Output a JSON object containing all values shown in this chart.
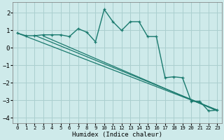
{
  "xlabel": "Humidex (Indice chaleur)",
  "background_color": "#ceeaea",
  "grid_color": "#aacfcf",
  "line_color": "#1a7a6e",
  "xlim": [
    -0.5,
    23.5
  ],
  "ylim": [
    -4.3,
    2.6
  ],
  "xticks": [
    0,
    1,
    2,
    3,
    4,
    5,
    6,
    7,
    8,
    9,
    10,
    11,
    12,
    13,
    14,
    15,
    16,
    17,
    18,
    19,
    20,
    21,
    22,
    23
  ],
  "yticks": [
    -4,
    -3,
    -2,
    -1,
    0,
    1,
    2
  ],
  "curve1_x": [
    0,
    1,
    2,
    3,
    4,
    5,
    6,
    7,
    8,
    9,
    10,
    11,
    12,
    13,
    14,
    15,
    16,
    17,
    18,
    19,
    20,
    21,
    22,
    23
  ],
  "curve1_y": [
    0.85,
    0.7,
    0.7,
    0.75,
    0.75,
    0.75,
    0.65,
    1.1,
    0.9,
    0.35,
    2.2,
    1.5,
    1.0,
    1.5,
    1.5,
    0.65,
    0.65,
    -1.7,
    -1.65,
    -1.7,
    -3.05,
    -3.05,
    -3.6,
    -3.55
  ],
  "line1_x": [
    0,
    23
  ],
  "line1_y": [
    0.85,
    -3.55
  ],
  "line2_x": [
    2,
    23
  ],
  "line2_y": [
    0.72,
    -3.55
  ],
  "line3_x": [
    3,
    23
  ],
  "line3_y": [
    0.68,
    -3.6
  ],
  "lw_curve": 1.0,
  "lw_line": 0.9,
  "marker_size": 3.0
}
